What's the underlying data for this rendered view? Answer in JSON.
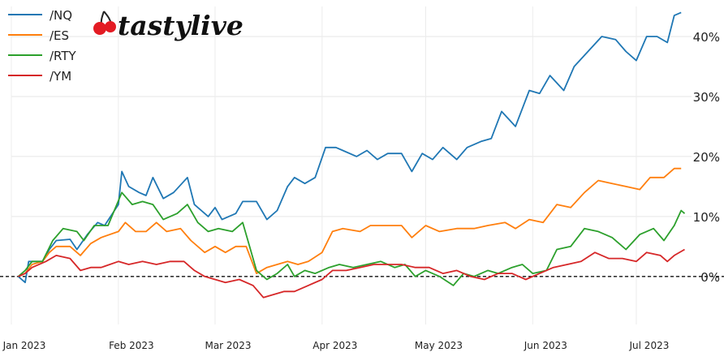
{
  "chart_data": {
    "type": "line",
    "title": "",
    "xlabel": "",
    "ylabel": "",
    "x_start": "2023-01-03",
    "x_end": "2023-07-14",
    "xlim": [
      "2023-01-01",
      "2023-07-17"
    ],
    "ylim": [
      -8,
      45
    ],
    "x_ticks": [
      {
        "label": "Jan 2023",
        "date": "2023-01-01"
      },
      {
        "label": "Feb 2023",
        "date": "2023-02-01"
      },
      {
        "label": "Mar 2023",
        "date": "2023-03-01"
      },
      {
        "label": "Apr 2023",
        "date": "2023-04-01"
      },
      {
        "label": "May 2023",
        "date": "2023-05-01"
      },
      {
        "label": "Jun 2023",
        "date": "2023-06-01"
      },
      {
        "label": "Jul 2023",
        "date": "2023-07-01"
      }
    ],
    "y_ticks": [
      {
        "label": "0%",
        "value": 0
      },
      {
        "label": "10%",
        "value": 10
      },
      {
        "label": "20%",
        "value": 20
      },
      {
        "label": "30%",
        "value": 30
      },
      {
        "label": "40%",
        "value": 40
      }
    ],
    "y_axis_side": "right",
    "grid": true,
    "zero_line": "dashed",
    "legend_position": "top-left",
    "series": [
      {
        "name": "/NQ",
        "color": "#1f77b4",
        "points": [
          [
            "2023-01-03",
            0
          ],
          [
            "2023-01-05",
            -1
          ],
          [
            "2023-01-06",
            2.5
          ],
          [
            "2023-01-10",
            2.5
          ],
          [
            "2023-01-12",
            4.5
          ],
          [
            "2023-01-14",
            6
          ],
          [
            "2023-01-18",
            6.2
          ],
          [
            "2023-01-20",
            4.5
          ],
          [
            "2023-01-23",
            7
          ],
          [
            "2023-01-26",
            9
          ],
          [
            "2023-01-28",
            8.5
          ],
          [
            "2023-02-01",
            12
          ],
          [
            "2023-02-02",
            17.5
          ],
          [
            "2023-02-04",
            15
          ],
          [
            "2023-02-07",
            14
          ],
          [
            "2023-02-09",
            13.5
          ],
          [
            "2023-02-11",
            16.5
          ],
          [
            "2023-02-14",
            13
          ],
          [
            "2023-02-17",
            14
          ],
          [
            "2023-02-21",
            16.5
          ],
          [
            "2023-02-23",
            12
          ],
          [
            "2023-02-27",
            10
          ],
          [
            "2023-03-01",
            11.5
          ],
          [
            "2023-03-03",
            9.5
          ],
          [
            "2023-03-07",
            10.5
          ],
          [
            "2023-03-09",
            12.5
          ],
          [
            "2023-03-13",
            12.5
          ],
          [
            "2023-03-16",
            9.5
          ],
          [
            "2023-03-19",
            11
          ],
          [
            "2023-03-22",
            15
          ],
          [
            "2023-03-24",
            16.5
          ],
          [
            "2023-03-27",
            15.5
          ],
          [
            "2023-03-30",
            16.5
          ],
          [
            "2023-04-02",
            21.5
          ],
          [
            "2023-04-05",
            21.5
          ],
          [
            "2023-04-07",
            21
          ],
          [
            "2023-04-11",
            20
          ],
          [
            "2023-04-14",
            21
          ],
          [
            "2023-04-17",
            19.5
          ],
          [
            "2023-04-20",
            20.5
          ],
          [
            "2023-04-24",
            20.5
          ],
          [
            "2023-04-27",
            17.5
          ],
          [
            "2023-04-30",
            20.5
          ],
          [
            "2023-05-03",
            19.5
          ],
          [
            "2023-05-06",
            21.5
          ],
          [
            "2023-05-10",
            19.5
          ],
          [
            "2023-05-13",
            21.5
          ],
          [
            "2023-05-17",
            22.5
          ],
          [
            "2023-05-20",
            23
          ],
          [
            "2023-05-23",
            27.5
          ],
          [
            "2023-05-27",
            25
          ],
          [
            "2023-05-31",
            31
          ],
          [
            "2023-06-03",
            30.5
          ],
          [
            "2023-06-06",
            33.5
          ],
          [
            "2023-06-10",
            31
          ],
          [
            "2023-06-13",
            35
          ],
          [
            "2023-06-17",
            37.5
          ],
          [
            "2023-06-21",
            40
          ],
          [
            "2023-06-25",
            39.5
          ],
          [
            "2023-06-28",
            37.5
          ],
          [
            "2023-07-01",
            36
          ],
          [
            "2023-07-04",
            40
          ],
          [
            "2023-07-07",
            40
          ],
          [
            "2023-07-10",
            39
          ],
          [
            "2023-07-12",
            43.5
          ],
          [
            "2023-07-14",
            44
          ]
        ]
      },
      {
        "name": "/ES",
        "color": "#ff7f0e",
        "points": [
          [
            "2023-01-03",
            0
          ],
          [
            "2023-01-05",
            0.5
          ],
          [
            "2023-01-07",
            2
          ],
          [
            "2023-01-10",
            2.5
          ],
          [
            "2023-01-12",
            4
          ],
          [
            "2023-01-14",
            5
          ],
          [
            "2023-01-18",
            5
          ],
          [
            "2023-01-21",
            3.5
          ],
          [
            "2023-01-24",
            5.5
          ],
          [
            "2023-01-27",
            6.5
          ],
          [
            "2023-02-01",
            7.5
          ],
          [
            "2023-02-03",
            9
          ],
          [
            "2023-02-06",
            7.5
          ],
          [
            "2023-02-09",
            7.5
          ],
          [
            "2023-02-12",
            9
          ],
          [
            "2023-02-15",
            7.5
          ],
          [
            "2023-02-19",
            8
          ],
          [
            "2023-02-22",
            6
          ],
          [
            "2023-02-26",
            4
          ],
          [
            "2023-03-01",
            5
          ],
          [
            "2023-03-04",
            4
          ],
          [
            "2023-03-07",
            5
          ],
          [
            "2023-03-10",
            5
          ],
          [
            "2023-03-13",
            0.5
          ],
          [
            "2023-03-16",
            1.5
          ],
          [
            "2023-03-19",
            2
          ],
          [
            "2023-03-22",
            2.5
          ],
          [
            "2023-03-25",
            2
          ],
          [
            "2023-03-28",
            2.5
          ],
          [
            "2023-04-01",
            4
          ],
          [
            "2023-04-04",
            7.5
          ],
          [
            "2023-04-07",
            8
          ],
          [
            "2023-04-12",
            7.5
          ],
          [
            "2023-04-15",
            8.5
          ],
          [
            "2023-04-20",
            8.5
          ],
          [
            "2023-04-24",
            8.5
          ],
          [
            "2023-04-27",
            6.5
          ],
          [
            "2023-05-01",
            8.5
          ],
          [
            "2023-05-05",
            7.5
          ],
          [
            "2023-05-10",
            8
          ],
          [
            "2023-05-15",
            8
          ],
          [
            "2023-05-19",
            8.5
          ],
          [
            "2023-05-24",
            9
          ],
          [
            "2023-05-27",
            8
          ],
          [
            "2023-05-31",
            9.5
          ],
          [
            "2023-06-04",
            9
          ],
          [
            "2023-06-08",
            12
          ],
          [
            "2023-06-12",
            11.5
          ],
          [
            "2023-06-16",
            14
          ],
          [
            "2023-06-20",
            16
          ],
          [
            "2023-06-24",
            15.5
          ],
          [
            "2023-06-28",
            15
          ],
          [
            "2023-07-02",
            14.5
          ],
          [
            "2023-07-05",
            16.5
          ],
          [
            "2023-07-09",
            16.5
          ],
          [
            "2023-07-12",
            18
          ],
          [
            "2023-07-14",
            18
          ]
        ]
      },
      {
        "name": "/RTY",
        "color": "#2ca02c",
        "points": [
          [
            "2023-01-03",
            0
          ],
          [
            "2023-01-05",
            1
          ],
          [
            "2023-01-07",
            2.5
          ],
          [
            "2023-01-10",
            2.5
          ],
          [
            "2023-01-13",
            6
          ],
          [
            "2023-01-16",
            8
          ],
          [
            "2023-01-20",
            7.5
          ],
          [
            "2023-01-22",
            6
          ],
          [
            "2023-01-25",
            8.5
          ],
          [
            "2023-01-29",
            8.5
          ],
          [
            "2023-02-02",
            14
          ],
          [
            "2023-02-05",
            12
          ],
          [
            "2023-02-08",
            12.5
          ],
          [
            "2023-02-11",
            12
          ],
          [
            "2023-02-14",
            9.5
          ],
          [
            "2023-02-18",
            10.5
          ],
          [
            "2023-02-21",
            12
          ],
          [
            "2023-02-24",
            9
          ],
          [
            "2023-02-27",
            7.5
          ],
          [
            "2023-03-02",
            8
          ],
          [
            "2023-03-06",
            7.5
          ],
          [
            "2023-03-09",
            9
          ],
          [
            "2023-03-11",
            5
          ],
          [
            "2023-03-13",
            1
          ],
          [
            "2023-03-16",
            -0.5
          ],
          [
            "2023-03-19",
            0.5
          ],
          [
            "2023-03-22",
            2
          ],
          [
            "2023-03-24",
            0
          ],
          [
            "2023-03-27",
            1
          ],
          [
            "2023-03-30",
            0.5
          ],
          [
            "2023-04-03",
            1.5
          ],
          [
            "2023-04-06",
            2
          ],
          [
            "2023-04-10",
            1.5
          ],
          [
            "2023-04-14",
            2
          ],
          [
            "2023-04-18",
            2.5
          ],
          [
            "2023-04-22",
            1.5
          ],
          [
            "2023-04-25",
            2
          ],
          [
            "2023-04-28",
            0
          ],
          [
            "2023-05-01",
            1
          ],
          [
            "2023-05-05",
            0
          ],
          [
            "2023-05-09",
            -1.5
          ],
          [
            "2023-05-12",
            0.5
          ],
          [
            "2023-05-15",
            0
          ],
          [
            "2023-05-19",
            1
          ],
          [
            "2023-05-22",
            0.5
          ],
          [
            "2023-05-26",
            1.5
          ],
          [
            "2023-05-29",
            2
          ],
          [
            "2023-06-01",
            0.5
          ],
          [
            "2023-06-05",
            1
          ],
          [
            "2023-06-08",
            4.5
          ],
          [
            "2023-06-12",
            5
          ],
          [
            "2023-06-16",
            8
          ],
          [
            "2023-06-20",
            7.5
          ],
          [
            "2023-06-24",
            6.5
          ],
          [
            "2023-06-28",
            4.5
          ],
          [
            "2023-07-02",
            7
          ],
          [
            "2023-07-06",
            8
          ],
          [
            "2023-07-09",
            6
          ],
          [
            "2023-07-12",
            8.5
          ],
          [
            "2023-07-14",
            11
          ],
          [
            "2023-07-15",
            10.5
          ]
        ]
      },
      {
        "name": "/YM",
        "color": "#d62728",
        "points": [
          [
            "2023-01-03",
            0
          ],
          [
            "2023-01-05",
            0.5
          ],
          [
            "2023-01-07",
            1.5
          ],
          [
            "2023-01-11",
            2.5
          ],
          [
            "2023-01-14",
            3.5
          ],
          [
            "2023-01-18",
            3
          ],
          [
            "2023-01-21",
            1
          ],
          [
            "2023-01-24",
            1.5
          ],
          [
            "2023-01-27",
            1.5
          ],
          [
            "2023-02-01",
            2.5
          ],
          [
            "2023-02-04",
            2
          ],
          [
            "2023-02-08",
            2.5
          ],
          [
            "2023-02-12",
            2
          ],
          [
            "2023-02-16",
            2.5
          ],
          [
            "2023-02-20",
            2.5
          ],
          [
            "2023-02-23",
            1
          ],
          [
            "2023-02-26",
            0
          ],
          [
            "2023-03-01",
            -0.5
          ],
          [
            "2023-03-04",
            -1
          ],
          [
            "2023-03-08",
            -0.5
          ],
          [
            "2023-03-12",
            -1.5
          ],
          [
            "2023-03-15",
            -3.5
          ],
          [
            "2023-03-18",
            -3
          ],
          [
            "2023-03-21",
            -2.5
          ],
          [
            "2023-03-24",
            -2.5
          ],
          [
            "2023-03-28",
            -1.5
          ],
          [
            "2023-04-01",
            -0.5
          ],
          [
            "2023-04-04",
            1
          ],
          [
            "2023-04-08",
            1
          ],
          [
            "2023-04-12",
            1.5
          ],
          [
            "2023-04-16",
            2
          ],
          [
            "2023-04-20",
            2
          ],
          [
            "2023-04-24",
            2
          ],
          [
            "2023-04-28",
            1.5
          ],
          [
            "2023-05-02",
            1.5
          ],
          [
            "2023-05-06",
            0.5
          ],
          [
            "2023-05-10",
            1
          ],
          [
            "2023-05-14",
            0
          ],
          [
            "2023-05-18",
            -0.5
          ],
          [
            "2023-05-22",
            0.5
          ],
          [
            "2023-05-26",
            0.5
          ],
          [
            "2023-05-30",
            -0.5
          ],
          [
            "2023-06-03",
            0.5
          ],
          [
            "2023-06-07",
            1.5
          ],
          [
            "2023-06-11",
            2
          ],
          [
            "2023-06-15",
            2.5
          ],
          [
            "2023-06-19",
            4
          ],
          [
            "2023-06-23",
            3
          ],
          [
            "2023-06-27",
            3
          ],
          [
            "2023-07-01",
            2.5
          ],
          [
            "2023-07-04",
            4
          ],
          [
            "2023-07-08",
            3.5
          ],
          [
            "2023-07-10",
            2.5
          ],
          [
            "2023-07-12",
            3.5
          ],
          [
            "2023-07-15",
            4.5
          ]
        ]
      }
    ]
  },
  "branding": {
    "logo_text": "tastylive",
    "logo_icon": "cherry-icon",
    "cherry_color": "#e31b23"
  }
}
